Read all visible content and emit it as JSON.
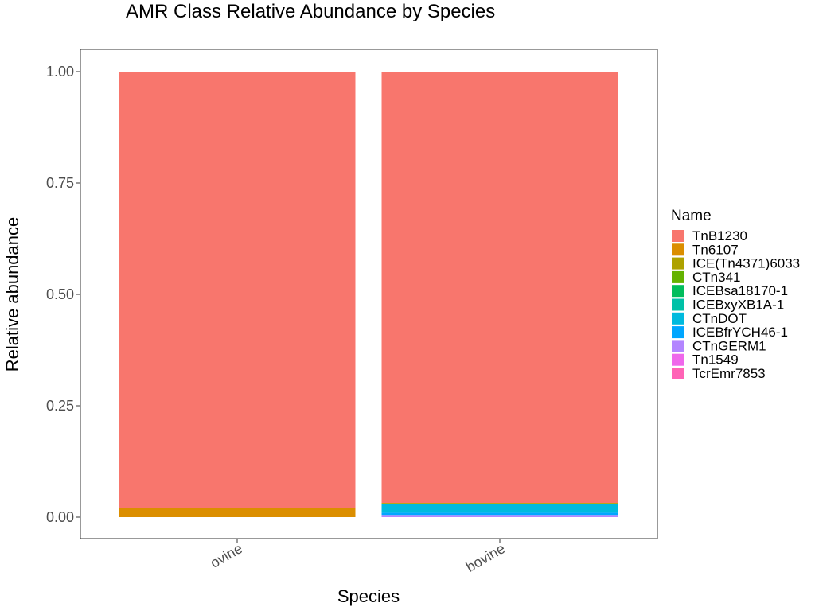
{
  "chart_data": {
    "type": "bar",
    "stacked": true,
    "title": "AMR Class Relative Abundance by Species",
    "xlabel": "Species",
    "ylabel": "Relative abundance",
    "categories": [
      "ovine",
      "bovine"
    ],
    "ylim": [
      0,
      1
    ],
    "yticks": [
      "0.00",
      "0.25",
      "0.50",
      "0.75",
      "1.00"
    ],
    "ytick_values": [
      0,
      0.25,
      0.5,
      0.75,
      1.0
    ],
    "grid": false,
    "legend_title": "Name",
    "legend_position": "right",
    "series": [
      {
        "name": "TnB1230",
        "color": "#F8766D",
        "values": [
          0.98,
          0.968
        ]
      },
      {
        "name": "Tn6107",
        "color": "#DB8E00",
        "values": [
          0.02,
          0.0
        ]
      },
      {
        "name": "ICE(Tn4371)6033",
        "color": "#AEA200",
        "values": [
          0.0,
          0.002
        ]
      },
      {
        "name": "CTn341",
        "color": "#64B200",
        "values": [
          0.0,
          0.0
        ]
      },
      {
        "name": "ICEBsa18170-1",
        "color": "#00BD5C",
        "values": [
          0.0,
          0.0
        ]
      },
      {
        "name": "ICEBxyXB1A-1",
        "color": "#00C1A7",
        "values": [
          0.0,
          0.0
        ]
      },
      {
        "name": "CTnDOT",
        "color": "#00BADE",
        "values": [
          0.0,
          0.02
        ]
      },
      {
        "name": "ICEBfrYCH46-1",
        "color": "#00A6FF",
        "values": [
          0.0,
          0.005
        ]
      },
      {
        "name": "CTnGERM1",
        "color": "#B385FF",
        "values": [
          0.0,
          0.005
        ]
      },
      {
        "name": "Tn1549",
        "color": "#EF67EB",
        "values": [
          0.0,
          0.0
        ]
      },
      {
        "name": "TcrEmr7853",
        "color": "#FF63B6",
        "values": [
          0.0,
          0.0
        ]
      }
    ]
  }
}
